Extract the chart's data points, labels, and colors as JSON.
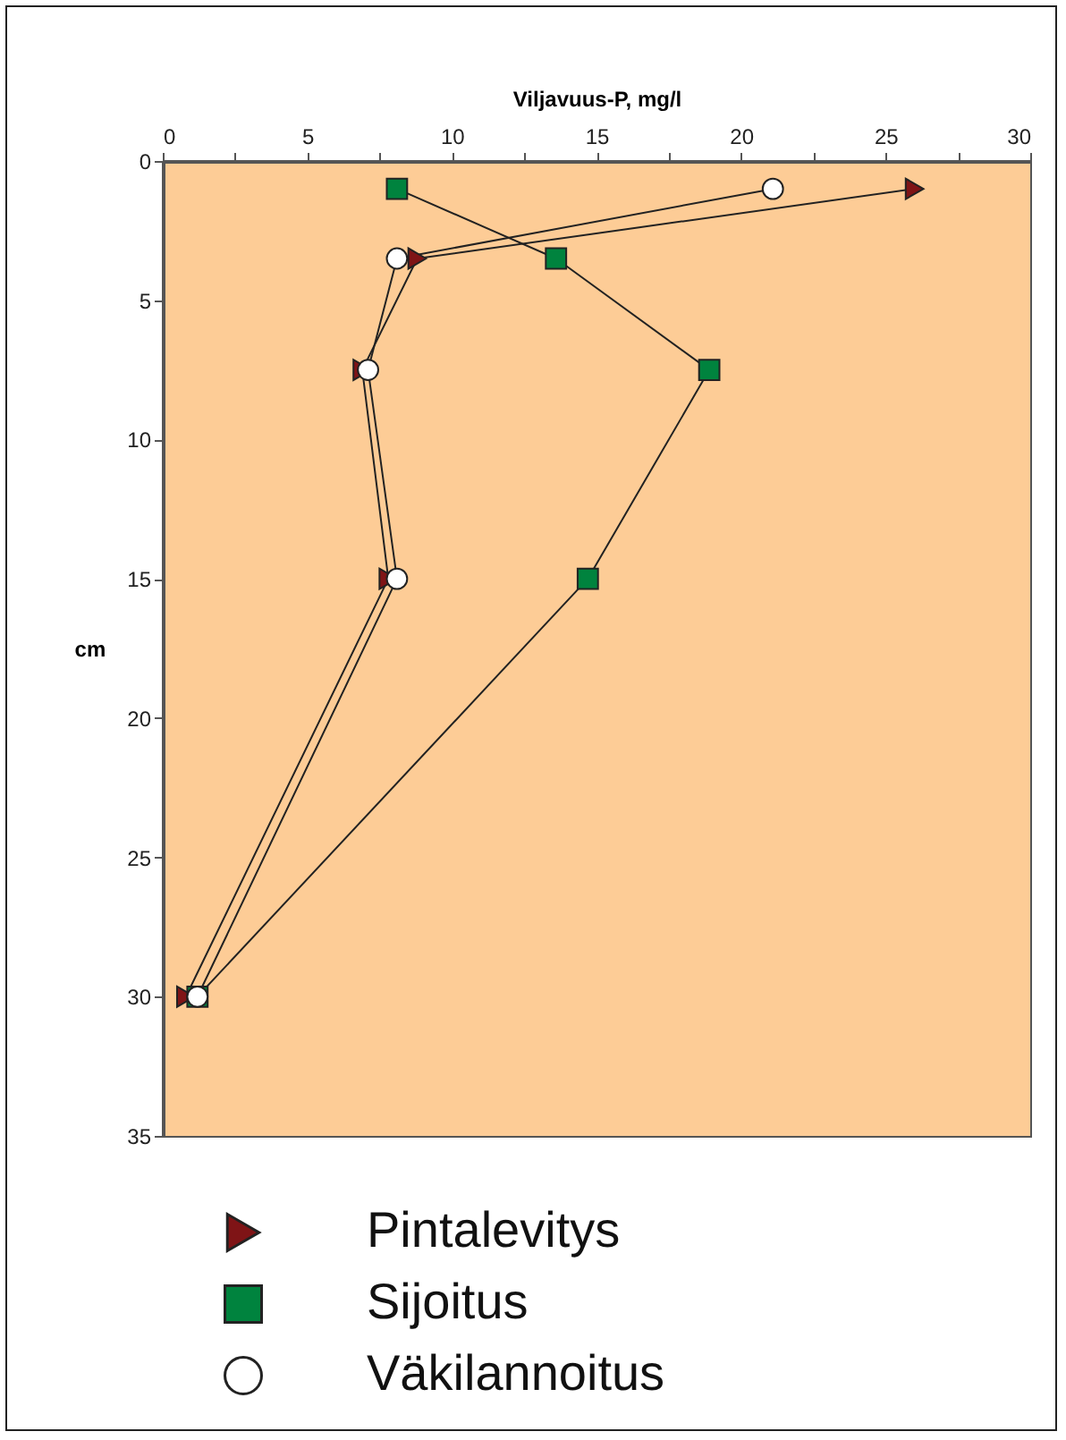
{
  "chart_data": {
    "type": "line",
    "xlabel": "Viljavuus-P, mg/l",
    "ylabel": "cm",
    "xlim": [
      0,
      30
    ],
    "xticks": [
      0,
      {
        "value": 2.5,
        "label": null
      },
      5,
      {
        "value": 7.5,
        "label": null
      },
      10,
      {
        "value": 12.5,
        "label": null
      },
      15,
      {
        "value": 17.5,
        "label": null
      },
      20,
      {
        "value": 22.5,
        "label": null
      },
      25,
      {
        "value": 27.5,
        "label": null
      },
      30
    ],
    "ylim": [
      35,
      0
    ],
    "yticks": [
      0,
      5,
      10,
      15,
      20,
      25,
      30,
      35
    ],
    "grid": false,
    "legend": "bottom",
    "series": [
      {
        "name": "Pintalevitys",
        "color": "#7f1416",
        "marker": "triangle",
        "x": [
          26,
          8.8,
          6.9,
          7.8,
          0.8
        ],
        "values": [
          1,
          3.5,
          7.5,
          15,
          30
        ]
      },
      {
        "name": "Sijoitus",
        "color": "#00833e",
        "marker": "square",
        "x": [
          8.1,
          13.6,
          18.9,
          14.7,
          1.2
        ],
        "values": [
          1,
          3.5,
          7.5,
          15,
          30
        ]
      },
      {
        "name": "Väkilannoitus",
        "color": "#ffffff",
        "marker": "circle",
        "x": [
          21.1,
          8.1,
          7.1,
          8.1,
          1.2
        ],
        "values": [
          1,
          3.5,
          7.5,
          15,
          30
        ]
      }
    ]
  }
}
